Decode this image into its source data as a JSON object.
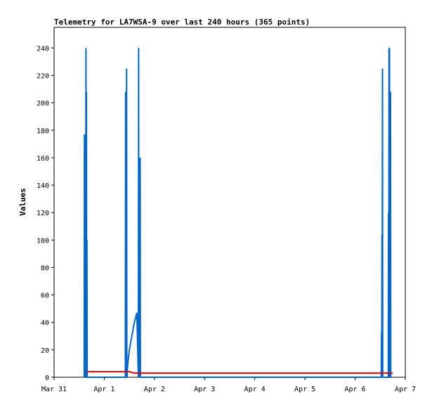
{
  "chart_data": {
    "type": "line",
    "title": "Telemetry for LA7WSA-9 over last 240 hours (365 points)",
    "xlabel": "",
    "ylabel": "Values",
    "x_ticks": [
      "Mar 31",
      "Apr 1",
      "Apr 2",
      "Apr 3",
      "Apr 4",
      "Apr 5",
      "Apr 6",
      "Apr 7"
    ],
    "y_ticks": [
      0,
      20,
      40,
      60,
      80,
      100,
      120,
      140,
      160,
      180,
      200,
      220,
      240
    ],
    "xlim": [
      "Mar 31 00:00",
      "Apr 7 00:00"
    ],
    "ylim": [
      0,
      255
    ],
    "grid": false,
    "legend": "none",
    "series": [
      {
        "color": "#0066cc",
        "x_unit": "days since Mar 31 00:00",
        "x": [
          0.6,
          0.605,
          0.61,
          0.615,
          0.62,
          0.625,
          0.63,
          0.635,
          0.64,
          0.645,
          0.65,
          0.655,
          0.66,
          0.665,
          0.67,
          0.675,
          0.68,
          0.685,
          0.69,
          0.695,
          1.42,
          1.425,
          1.43,
          1.435,
          1.44,
          1.445,
          1.45,
          1.455,
          1.46,
          1.47,
          1.5,
          1.55,
          1.6,
          1.65,
          1.68,
          1.685,
          1.69,
          1.695,
          1.7,
          1.705,
          1.71,
          1.715,
          1.72,
          1.725,
          1.73,
          6.52,
          6.525,
          6.53,
          6.535,
          6.54,
          6.545,
          6.55,
          6.555,
          6.56,
          6.66,
          6.665,
          6.67,
          6.675,
          6.68,
          6.685,
          6.69,
          6.695,
          6.7,
          6.705,
          6.71,
          6.715,
          6.72
        ],
        "values": [
          0,
          177,
          0,
          112,
          0,
          128,
          0,
          240,
          0,
          208,
          0,
          100,
          0,
          0,
          0,
          0,
          0,
          0,
          0,
          0,
          0,
          208,
          0,
          160,
          0,
          225,
          0,
          0,
          5,
          10,
          20,
          30,
          40,
          47,
          0,
          240,
          0,
          160,
          0,
          160,
          0,
          160,
          0,
          0,
          0,
          0,
          32,
          0,
          104,
          0,
          225,
          0,
          0,
          0,
          0,
          120,
          0,
          240,
          0,
          240,
          0,
          208,
          0,
          208,
          0,
          0,
          0
        ]
      },
      {
        "color": "#dd0000",
        "x_unit": "days since Mar 31 00:00",
        "x": [
          0.65,
          1.4,
          1.5,
          1.6,
          2.0,
          3.0,
          4.0,
          5.0,
          6.0,
          6.5,
          6.75
        ],
        "values": [
          4,
          4,
          4,
          3,
          3,
          3,
          3,
          3,
          3,
          3,
          3
        ]
      }
    ]
  }
}
